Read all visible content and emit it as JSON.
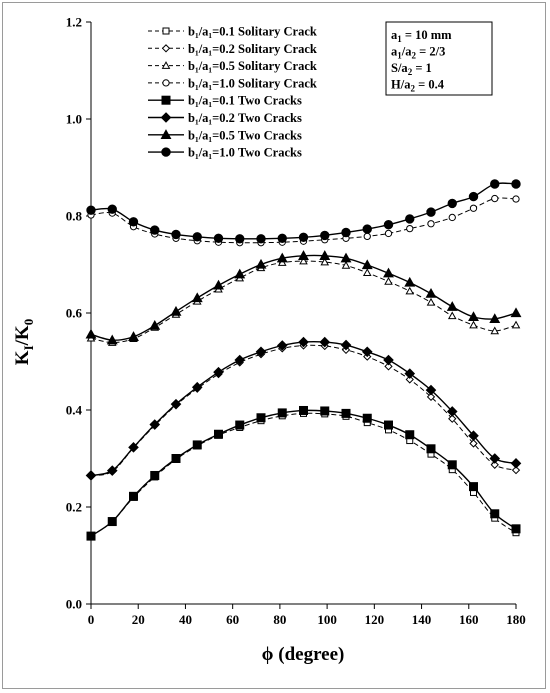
{
  "chart_data": {
    "type": "line",
    "xlabel": "ϕ (degree)",
    "ylabel": "K",
    "ylabel_sub1": "I",
    "ylabel_mid": "/K",
    "ylabel_sub2": "0",
    "xlim": [
      0,
      180
    ],
    "ylim": [
      0,
      1.2
    ],
    "x_ticks": [
      "0",
      "20",
      "40",
      "60",
      "80",
      "100",
      "120",
      "140",
      "160",
      "180"
    ],
    "y_ticks": [
      "0.0",
      "0.2",
      "0.4",
      "0.6",
      "0.8",
      "1.0",
      "1.2"
    ],
    "grid": false,
    "legend_position": "top-center",
    "x": [
      0,
      9,
      18,
      27,
      36,
      45,
      54,
      63,
      72,
      81,
      90,
      99,
      108,
      117,
      126,
      135,
      144,
      153,
      162,
      171,
      180
    ],
    "series": [
      {
        "name": "b₁/a₁=0.1  Solitary Crack",
        "marker": "square-open",
        "dashed": true,
        "values": [
          0.14,
          0.17,
          0.22,
          0.262,
          0.298,
          0.326,
          0.348,
          0.364,
          0.378,
          0.388,
          0.393,
          0.392,
          0.387,
          0.374,
          0.359,
          0.337,
          0.309,
          0.277,
          0.23,
          0.177,
          0.147
        ]
      },
      {
        "name": "b₁/a₁=0.2  Solitary Crack",
        "marker": "diamond-open",
        "dashed": true,
        "values": [
          0.265,
          0.273,
          0.322,
          0.368,
          0.41,
          0.444,
          0.474,
          0.498,
          0.515,
          0.527,
          0.533,
          0.532,
          0.524,
          0.51,
          0.49,
          0.463,
          0.427,
          0.382,
          0.331,
          0.287,
          0.276
        ]
      },
      {
        "name": "b₁/a₁=0.5  Solitary Crack",
        "marker": "triangle-open",
        "dashed": true,
        "values": [
          0.548,
          0.539,
          0.547,
          0.57,
          0.597,
          0.624,
          0.649,
          0.672,
          0.693,
          0.704,
          0.707,
          0.705,
          0.698,
          0.683,
          0.665,
          0.645,
          0.622,
          0.594,
          0.575,
          0.563,
          0.575
        ]
      },
      {
        "name": "b₁/a₁=1.0  Solitary Crack",
        "marker": "circle-open",
        "dashed": true,
        "values": [
          0.802,
          0.806,
          0.778,
          0.763,
          0.754,
          0.749,
          0.746,
          0.745,
          0.745,
          0.746,
          0.748,
          0.751,
          0.754,
          0.758,
          0.764,
          0.774,
          0.784,
          0.797,
          0.816,
          0.836,
          0.835
        ]
      },
      {
        "name": "b₁/a₁=0.1  Two Cracks",
        "marker": "square-filled",
        "dashed": false,
        "values": [
          0.14,
          0.17,
          0.222,
          0.265,
          0.3,
          0.328,
          0.35,
          0.369,
          0.384,
          0.394,
          0.399,
          0.398,
          0.393,
          0.383,
          0.369,
          0.349,
          0.32,
          0.287,
          0.242,
          0.186,
          0.155
        ]
      },
      {
        "name": "b₁/a₁=0.2  Two Cracks",
        "marker": "diamond-filled",
        "dashed": false,
        "values": [
          0.265,
          0.275,
          0.323,
          0.37,
          0.412,
          0.447,
          0.478,
          0.503,
          0.52,
          0.533,
          0.54,
          0.54,
          0.534,
          0.52,
          0.503,
          0.475,
          0.441,
          0.397,
          0.347,
          0.3,
          0.29
        ]
      },
      {
        "name": "b₁/a₁=0.5  Two Cracks",
        "marker": "triangle-filled",
        "dashed": false,
        "values": [
          0.556,
          0.544,
          0.551,
          0.574,
          0.603,
          0.631,
          0.657,
          0.68,
          0.7,
          0.713,
          0.718,
          0.718,
          0.713,
          0.699,
          0.682,
          0.663,
          0.64,
          0.613,
          0.592,
          0.588,
          0.6
        ]
      },
      {
        "name": "b₁/a₁=1.0  Two Cracks",
        "marker": "circle-filled",
        "dashed": false,
        "values": [
          0.812,
          0.814,
          0.788,
          0.771,
          0.762,
          0.757,
          0.754,
          0.753,
          0.753,
          0.754,
          0.756,
          0.76,
          0.766,
          0.773,
          0.782,
          0.794,
          0.808,
          0.826,
          0.84,
          0.866,
          0.866
        ]
      }
    ],
    "parameters": [
      "a",
      "a",
      "S/a",
      "H/a"
    ],
    "parameter_lines": [
      {
        "name": "a",
        "sub": "1",
        "value": " = 10 mm"
      },
      {
        "name": "a",
        "sub": "1",
        "mid": "/a",
        "sub2": "2",
        "value": " = 2/3"
      },
      {
        "name": "S/a",
        "sub": "2",
        "value": " =  1"
      },
      {
        "name": "H/a",
        "sub": "2",
        "value": " = 0.4"
      }
    ]
  }
}
